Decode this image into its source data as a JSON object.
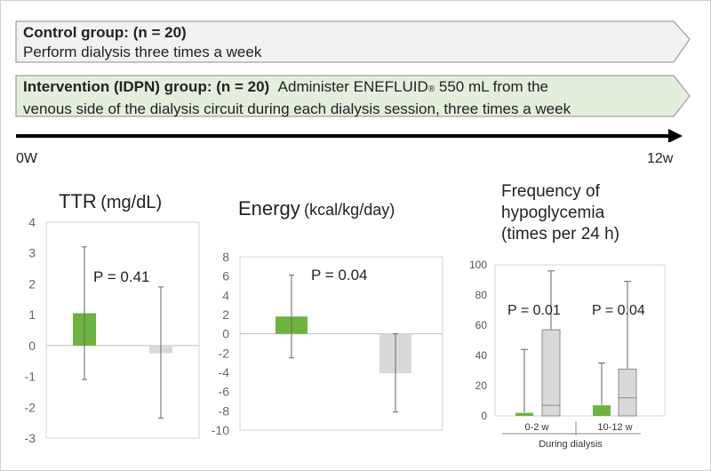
{
  "control": {
    "heading": "Control group: (n = 20)",
    "text": "Perform dialysis three times a week"
  },
  "intervention": {
    "heading": "Intervention (IDPN) group: (n = 20)",
    "line1_pre": "Administer ENEFLUID",
    "registered": "®",
    "line1_post": " 550 mL from the",
    "line2": "venous side of the dialysis circuit during each dialysis session, three times a week"
  },
  "timeline": {
    "start": "0W",
    "end": "12w"
  },
  "colors": {
    "idpn": "#6db33f",
    "control": "#d9d9d9",
    "arrow_fill": "#f2f2f2",
    "intervention_fill": "#e4eedd"
  },
  "chart_data": [
    {
      "type": "bar",
      "title": "TTR",
      "unit": "(mg/dL)",
      "ylim": [
        -3,
        4
      ],
      "yticks": [
        "4",
        "3",
        "2",
        "1",
        "0",
        "-1",
        "-2",
        "-3"
      ],
      "p_value": "P = 0.41",
      "series": [
        {
          "group": "IDPN",
          "value": 1.05,
          "err_low": -1.1,
          "err_high": 3.2
        },
        {
          "group": "Control",
          "value": -0.25,
          "err_low": -2.35,
          "err_high": 1.9
        }
      ]
    },
    {
      "type": "bar",
      "title": "Energy",
      "unit": "(kcal/kg/day)",
      "ylim": [
        -10,
        8
      ],
      "yticks": [
        "8",
        "6",
        "4",
        "2",
        "0",
        "-2",
        "-4",
        "-6",
        "-8",
        "-10"
      ],
      "p_value": "P = 0.04",
      "series": [
        {
          "group": "IDPN",
          "value": 1.8,
          "err_low": -2.5,
          "err_high": 6.1
        },
        {
          "group": "Control",
          "value": -4.1,
          "err_low": -8.1,
          "err_high": 0
        }
      ]
    },
    {
      "type": "box",
      "title_lines": [
        "Frequency of",
        "hypoglycemia",
        "(times per 24 h)"
      ],
      "ylim": [
        0,
        100
      ],
      "yticks": [
        "100",
        "80",
        "60",
        "40",
        "20",
        "0"
      ],
      "xlabel": "During dialysis",
      "groups": [
        {
          "category": "0-2 w",
          "p_value": "P = 0.01",
          "idpn": {
            "min": 0,
            "q1": 0,
            "median": 0,
            "q3": 2,
            "max": 44
          },
          "control": {
            "min": 0,
            "q1": 0,
            "median": 7,
            "q3": 57,
            "max": 96
          }
        },
        {
          "category": "10-12 w",
          "p_value": "P = 0.04",
          "idpn": {
            "min": 0,
            "q1": 0,
            "median": 0,
            "q3": 7,
            "max": 35
          },
          "control": {
            "min": 0,
            "q1": 0,
            "median": 12,
            "q3": 31,
            "max": 89
          }
        }
      ]
    }
  ]
}
